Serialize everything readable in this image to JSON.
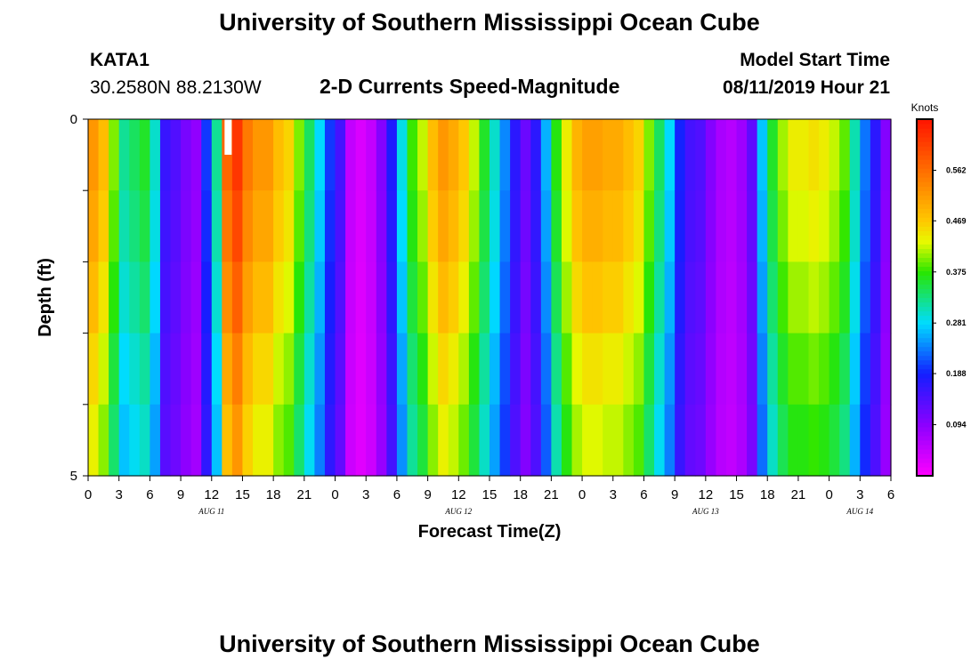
{
  "header": {
    "title": "University of Southern Mississippi Ocean Cube",
    "station_id": "KATA1",
    "station_coords": "30.2580N 88.2130W",
    "plot_title": "2-D Currents Speed-Magnitude",
    "model_start_label": "Model Start Time",
    "model_start_value": "08/11/2019 Hour 21"
  },
  "footer": {
    "title": "University of Southern Mississippi Ocean Cube"
  },
  "chart_data": {
    "type": "heatmap",
    "title": "2-D Currents Speed-Magnitude",
    "xlabel": "Forecast Time(Z)",
    "ylabel": "Depth (ft)",
    "x_unit": "hours since AUG 11 00Z",
    "xlim": [
      0,
      78
    ],
    "ylim": [
      0,
      5
    ],
    "y_tick_labels": [
      {
        "value": 0,
        "label": "0"
      },
      {
        "value": 5,
        "label": "5"
      }
    ],
    "x_tick_labels": [
      "0",
      "3",
      "6",
      "9",
      "12",
      "15",
      "18",
      "21",
      "0",
      "3",
      "6",
      "9",
      "12",
      "15",
      "18",
      "21",
      "0",
      "3",
      "6",
      "9",
      "12",
      "15",
      "18",
      "21",
      "0",
      "3",
      "6"
    ],
    "date_labels": [
      {
        "hour": 12,
        "label": "AUG 11"
      },
      {
        "hour": 36,
        "label": "AUG 12"
      },
      {
        "hour": 60,
        "label": "AUG 13"
      },
      {
        "hour": 75,
        "label": "AUG 14"
      }
    ],
    "colorbar": {
      "unit": "Knots",
      "min": 0.0,
      "max": 0.656,
      "tick_labels": [
        "0.094",
        "0.188",
        "0.281",
        "0.375",
        "0.469",
        "0.562"
      ],
      "tick_values": [
        0.094,
        0.188,
        0.281,
        0.375,
        0.469,
        0.562
      ]
    },
    "depth_rows": 5,
    "hour_start": 0,
    "hour_step": 1,
    "surface_speeds_knots": [
      0.52,
      0.48,
      0.4,
      0.32,
      0.34,
      0.36,
      0.3,
      0.16,
      0.14,
      0.11,
      0.09,
      0.2,
      0.32,
      0.57,
      0.62,
      0.55,
      0.52,
      0.52,
      0.48,
      0.46,
      0.4,
      0.34,
      0.28,
      0.2,
      0.15,
      0.05,
      0.03,
      0.05,
      0.1,
      0.18,
      0.29,
      0.38,
      0.42,
      0.48,
      0.52,
      0.5,
      0.47,
      0.42,
      0.36,
      0.3,
      0.24,
      0.17,
      0.12,
      0.17,
      0.26,
      0.37,
      0.44,
      0.49,
      0.51,
      0.51,
      0.5,
      0.5,
      0.48,
      0.46,
      0.4,
      0.34,
      0.28,
      0.19,
      0.15,
      0.14,
      0.1,
      0.07,
      0.06,
      0.08,
      0.13,
      0.27,
      0.36,
      0.41,
      0.44,
      0.44,
      0.45,
      0.44,
      0.42,
      0.39,
      0.31,
      0.23,
      0.17,
      0.1
    ],
    "depth_factors": [
      1.0,
      0.97,
      0.93,
      0.88,
      0.84
    ],
    "missing_cells": [
      {
        "hour": 13,
        "depth_row": 0
      }
    ]
  }
}
